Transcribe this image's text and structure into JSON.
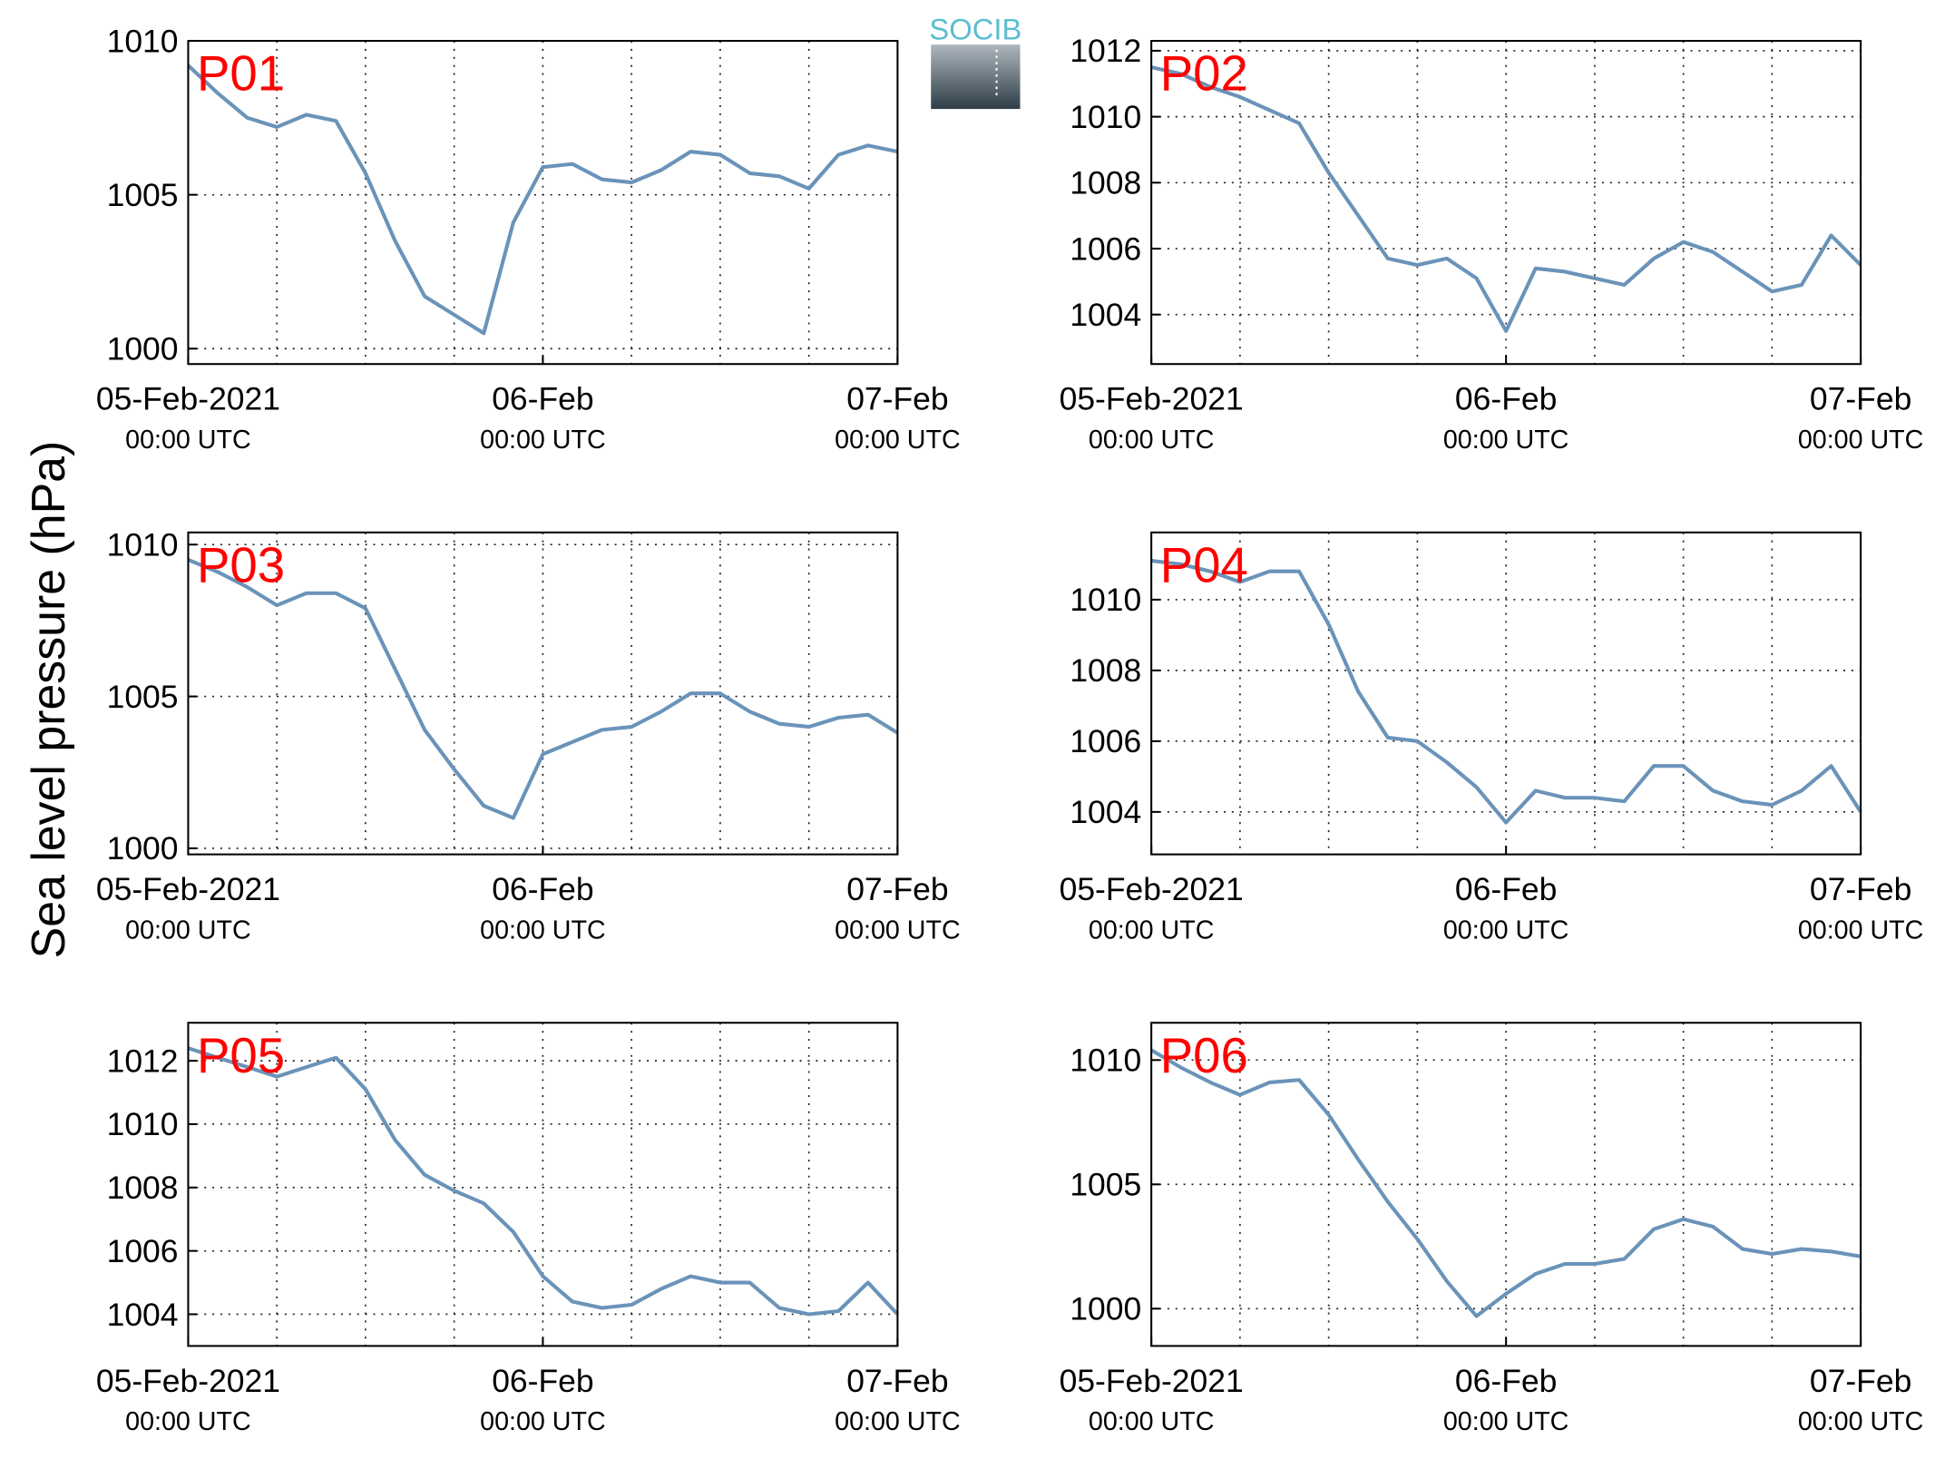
{
  "ylabel": "Sea level pressure (hPa)",
  "logo": "SOCIB",
  "chart_data": [
    {
      "type": "line",
      "title": "P01",
      "x": [
        0,
        2,
        4,
        6,
        8,
        10,
        12,
        14,
        16,
        18,
        20,
        22,
        24,
        26,
        28,
        30,
        32,
        34,
        36,
        38,
        40,
        42,
        44,
        46,
        48
      ],
      "series": [
        {
          "color": "#6a93b9",
          "values": [
            1009.2,
            1008.3,
            1007.5,
            1007.2,
            1007.6,
            1007.4,
            1005.7,
            1003.5,
            1001.7,
            1001.1,
            1000.5,
            1004.1,
            1005.9,
            1006,
            1005.5,
            1005.4,
            1005.8,
            1006.4,
            1006.3,
            1005.7,
            1005.6,
            1005.2,
            1006.3,
            1006.6,
            1006.4
          ]
        }
      ],
      "xlim": [
        0,
        48
      ],
      "xticks": [
        {
          "value": 0,
          "label": "05-Feb-2021",
          "sublabel": "00:00 UTC"
        },
        {
          "value": 24,
          "label": "06-Feb",
          "sublabel": "00:00 UTC"
        },
        {
          "value": 48,
          "label": "07-Feb",
          "sublabel": "00:00 UTC"
        }
      ],
      "xminor": [
        6,
        12,
        18,
        30,
        36,
        42
      ],
      "ylim": [
        999.5,
        1010
      ],
      "yticks": [
        1000,
        1005,
        1010
      ],
      "grid": true
    },
    {
      "type": "line",
      "title": "P02",
      "x": [
        0,
        2,
        4,
        6,
        8,
        10,
        12,
        14,
        16,
        18,
        20,
        22,
        24,
        26,
        28,
        30,
        32,
        34,
        36,
        38,
        40,
        42,
        44,
        46,
        48
      ],
      "series": [
        {
          "color": "#6a93b9",
          "values": [
            1011.5,
            1011.3,
            1010.9,
            1010.6,
            1010.2,
            1009.8,
            1008.3,
            1007,
            1005.7,
            1005.5,
            1005.7,
            1005.1,
            1003.5,
            1005.4,
            1005.3,
            1005.1,
            1004.9,
            1005.7,
            1006.2,
            1005.9,
            1005.3,
            1004.7,
            1004.9,
            1006.4,
            1005.5
          ]
        }
      ],
      "xlim": [
        0,
        48
      ],
      "xticks": [
        {
          "value": 0,
          "label": "05-Feb-2021",
          "sublabel": "00:00 UTC"
        },
        {
          "value": 24,
          "label": "06-Feb",
          "sublabel": "00:00 UTC"
        },
        {
          "value": 48,
          "label": "07-Feb",
          "sublabel": "00:00 UTC"
        }
      ],
      "xminor": [
        6,
        12,
        18,
        30,
        36,
        42
      ],
      "ylim": [
        1002.5,
        1012.3
      ],
      "yticks": [
        1004,
        1006,
        1008,
        1010,
        1012
      ],
      "grid": true
    },
    {
      "type": "line",
      "title": "P03",
      "x": [
        0,
        2,
        4,
        6,
        8,
        10,
        12,
        14,
        16,
        18,
        20,
        22,
        24,
        26,
        28,
        30,
        32,
        34,
        36,
        38,
        40,
        42,
        44,
        46,
        48
      ],
      "series": [
        {
          "color": "#6a93b9",
          "values": [
            1009.5,
            1009.1,
            1008.6,
            1008,
            1008.4,
            1008.4,
            1007.9,
            1005.9,
            1003.9,
            1002.6,
            1001.4,
            1001,
            1003.1,
            1003.5,
            1003.9,
            1004,
            1004.5,
            1005.1,
            1005.1,
            1004.5,
            1004.1,
            1004,
            1004.3,
            1004.4,
            1003.8
          ]
        }
      ],
      "xlim": [
        0,
        48
      ],
      "xticks": [
        {
          "value": 0,
          "label": "05-Feb-2021",
          "sublabel": "00:00 UTC"
        },
        {
          "value": 24,
          "label": "06-Feb",
          "sublabel": "00:00 UTC"
        },
        {
          "value": 48,
          "label": "07-Feb",
          "sublabel": "00:00 UTC"
        }
      ],
      "xminor": [
        6,
        12,
        18,
        30,
        36,
        42
      ],
      "ylim": [
        999.8,
        1010.4
      ],
      "yticks": [
        1000,
        1005,
        1010
      ],
      "grid": true
    },
    {
      "type": "line",
      "title": "P04",
      "x": [
        0,
        2,
        4,
        6,
        8,
        10,
        12,
        14,
        16,
        18,
        20,
        22,
        24,
        26,
        28,
        30,
        32,
        34,
        36,
        38,
        40,
        42,
        44,
        46,
        48
      ],
      "series": [
        {
          "color": "#6a93b9",
          "values": [
            1011.1,
            1011,
            1010.8,
            1010.5,
            1010.8,
            1010.8,
            1009.3,
            1007.4,
            1006.1,
            1006,
            1005.4,
            1004.7,
            1003.7,
            1004.6,
            1004.4,
            1004.4,
            1004.3,
            1005.3,
            1005.3,
            1004.6,
            1004.3,
            1004.2,
            1004.6,
            1005.3,
            1004
          ]
        }
      ],
      "xlim": [
        0,
        48
      ],
      "xticks": [
        {
          "value": 0,
          "label": "05-Feb-2021",
          "sublabel": "00:00 UTC"
        },
        {
          "value": 24,
          "label": "06-Feb",
          "sublabel": "00:00 UTC"
        },
        {
          "value": 48,
          "label": "07-Feb",
          "sublabel": "00:00 UTC"
        }
      ],
      "xminor": [
        6,
        12,
        18,
        30,
        36,
        42
      ],
      "ylim": [
        1002.8,
        1011.9
      ],
      "yticks": [
        1004,
        1006,
        1008,
        1010
      ],
      "grid": true
    },
    {
      "type": "line",
      "title": "P05",
      "x": [
        0,
        2,
        4,
        6,
        8,
        10,
        12,
        14,
        16,
        18,
        20,
        22,
        24,
        26,
        28,
        30,
        32,
        34,
        36,
        38,
        40,
        42,
        44,
        46,
        48
      ],
      "series": [
        {
          "color": "#6a93b9",
          "values": [
            1012.4,
            1012.1,
            1011.8,
            1011.5,
            1011.8,
            1012.1,
            1011.1,
            1009.5,
            1008.4,
            1007.9,
            1007.5,
            1006.6,
            1005.2,
            1004.4,
            1004.2,
            1004.3,
            1004.8,
            1005.2,
            1005,
            1005,
            1004.2,
            1004,
            1004.1,
            1005,
            1004
          ]
        }
      ],
      "xlim": [
        0,
        48
      ],
      "xticks": [
        {
          "value": 0,
          "label": "05-Feb-2021",
          "sublabel": "00:00 UTC"
        },
        {
          "value": 24,
          "label": "06-Feb",
          "sublabel": "00:00 UTC"
        },
        {
          "value": 48,
          "label": "07-Feb",
          "sublabel": "00:00 UTC"
        }
      ],
      "xminor": [
        6,
        12,
        18,
        30,
        36,
        42
      ],
      "ylim": [
        1003,
        1013.2
      ],
      "yticks": [
        1004,
        1006,
        1008,
        1010,
        1012
      ],
      "grid": true
    },
    {
      "type": "line",
      "title": "P06",
      "x": [
        0,
        2,
        4,
        6,
        8,
        10,
        12,
        14,
        16,
        18,
        20,
        22,
        24,
        26,
        28,
        30,
        32,
        34,
        36,
        38,
        40,
        42,
        44,
        46,
        48
      ],
      "series": [
        {
          "color": "#6a93b9",
          "values": [
            1010.4,
            1009.7,
            1009.1,
            1008.6,
            1009.1,
            1009.2,
            1007.8,
            1006,
            1004.3,
            1002.8,
            1001.1,
            999.7,
            1000.6,
            1001.4,
            1001.8,
            1001.8,
            1002,
            1003.2,
            1003.6,
            1003.3,
            1002.4,
            1002.2,
            1002.4,
            1002.3,
            1002.1
          ]
        }
      ],
      "xlim": [
        0,
        48
      ],
      "xticks": [
        {
          "value": 0,
          "label": "05-Feb-2021",
          "sublabel": "00:00 UTC"
        },
        {
          "value": 24,
          "label": "06-Feb",
          "sublabel": "00:00 UTC"
        },
        {
          "value": 48,
          "label": "07-Feb",
          "sublabel": "00:00 UTC"
        }
      ],
      "xminor": [
        6,
        12,
        18,
        30,
        36,
        42
      ],
      "ylim": [
        998.5,
        1011.5
      ],
      "yticks": [
        1000,
        1005,
        1010
      ],
      "grid": true
    }
  ]
}
